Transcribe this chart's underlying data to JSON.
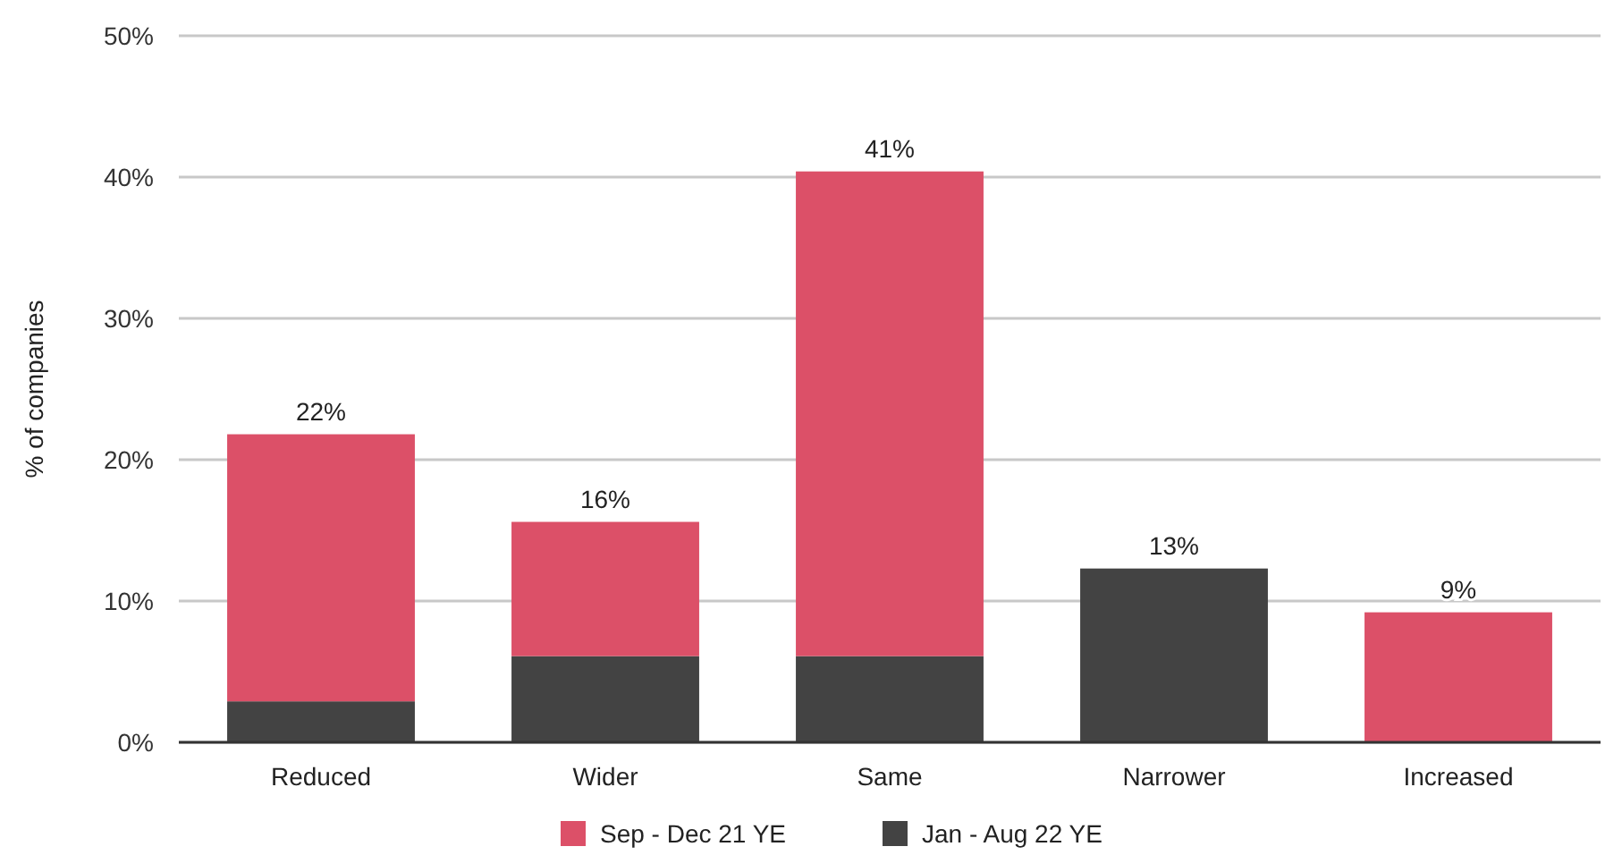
{
  "chart_data": {
    "type": "bar",
    "stacked": true,
    "ylabel": "% of companies",
    "categories": [
      "Reduced",
      "Wider",
      "Same",
      "Narrower",
      "Increased"
    ],
    "series": [
      {
        "name": "Jan - Aug 22 YE",
        "color": "#434343",
        "values": [
          2.9,
          6.1,
          6.1,
          12.3,
          0
        ]
      },
      {
        "name": "Sep - Dec 21 YE",
        "color": "#dc5068",
        "values": [
          18.9,
          9.5,
          34.3,
          0,
          9.2
        ]
      }
    ],
    "totals": [
      "22%",
      "16%",
      "41%",
      "13%",
      "9%"
    ],
    "ylim": [
      0,
      50
    ],
    "yticks": [
      {
        "value": 0,
        "label": "0%"
      },
      {
        "value": 10,
        "label": "10%"
      },
      {
        "value": 20,
        "label": "20%"
      },
      {
        "value": 30,
        "label": "30%"
      },
      {
        "value": 40,
        "label": "40%"
      },
      {
        "value": 50,
        "label": "50%"
      }
    ],
    "grid": "y",
    "legend": "bottom"
  }
}
